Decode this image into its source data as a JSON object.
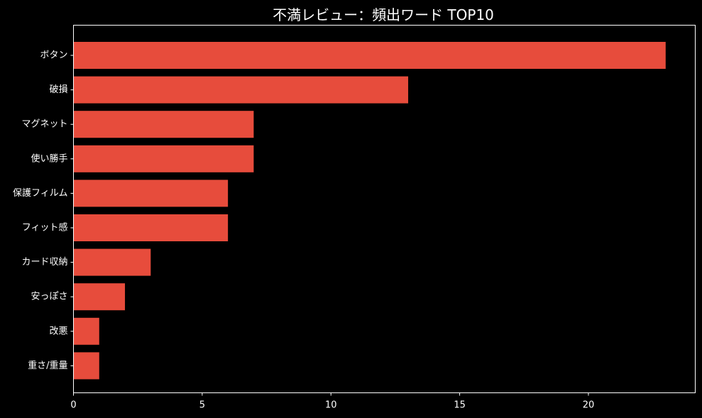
{
  "chart_data": {
    "type": "bar",
    "orientation": "horizontal",
    "title": "不満レビュー：頻出ワード TOP10",
    "xlabel": "",
    "ylabel": "",
    "categories": [
      "ボタン",
      "破損",
      "マグネット",
      "使い勝手",
      "保護フィルム",
      "フィット感",
      "カード収納",
      "安っぽさ",
      "改悪",
      "重さ/重量"
    ],
    "values": [
      23,
      13,
      7,
      7,
      6,
      6,
      3,
      2,
      1,
      1
    ],
    "xlim": [
      0,
      24.15
    ],
    "xticks": [
      0,
      5,
      10,
      15,
      20
    ],
    "grid": false,
    "legend": "none",
    "colors": {
      "background": "#000000",
      "bar": "#e74c3c",
      "text": "#ffffff",
      "axis": "#ffffff"
    }
  }
}
